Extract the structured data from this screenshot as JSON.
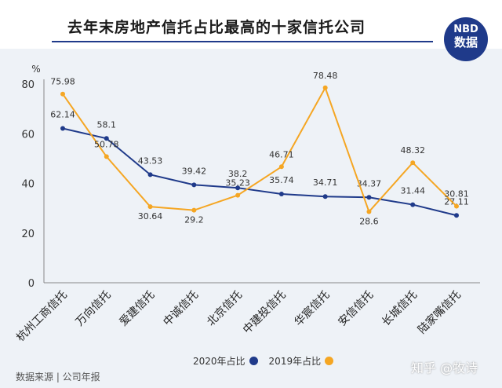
{
  "header": {
    "title": "去年末房地产信托占比最高的十家信托公司",
    "badge_brand": "NBD",
    "badge_label": "数据"
  },
  "footer": {
    "source": "数据来源 | 公司年报",
    "watermark": "知乎 @牧诗"
  },
  "colors": {
    "series_2020": "#1f3a8a",
    "series_2019": "#f5a623",
    "background": "#eef2f7"
  },
  "chart_data": {
    "type": "line",
    "title": "去年末房地产信托占比最高的十家信托公司",
    "ylabel": "%",
    "xlabel": "",
    "ylim": [
      0,
      80
    ],
    "yticks": [
      0,
      20,
      40,
      60,
      80
    ],
    "grid": false,
    "legend_position": "bottom",
    "categories": [
      "杭州工商信托",
      "万向信托",
      "爱建信托",
      "中诚信托",
      "北京信托",
      "中建投信托",
      "华宸信托",
      "安信信托",
      "长城信托",
      "陆家嘴信托"
    ],
    "series": [
      {
        "name": "2020年占比",
        "color": "#1f3a8a",
        "values": [
          62.14,
          58.1,
          43.53,
          39.42,
          38.2,
          35.74,
          34.71,
          34.37,
          31.44,
          27.11
        ]
      },
      {
        "name": "2019年占比",
        "color": "#f5a623",
        "values": [
          75.98,
          50.78,
          30.64,
          29.2,
          35.23,
          46.71,
          78.48,
          28.6,
          48.32,
          30.81
        ]
      }
    ]
  }
}
